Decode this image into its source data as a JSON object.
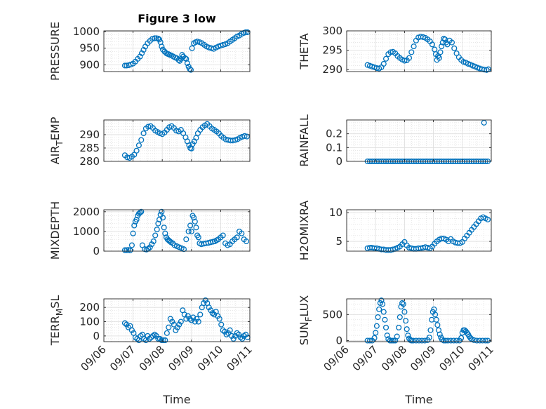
{
  "figure": {
    "title": "Figure 3 low",
    "marker_color": "#0072BD",
    "x_tick_labels": [
      "09/06",
      "09/07",
      "09/08",
      "09/09",
      "09/10",
      "09/11"
    ],
    "x_label": "Time"
  },
  "chart_data": [
    {
      "type": "scatter",
      "ylabel": "PRESSURE",
      "title": "Figure 3 low",
      "xlim": [
        0,
        5
      ],
      "ylim": [
        880,
        1002
      ],
      "yticks": [
        900,
        950,
        1000
      ],
      "ytick_labels": [
        "900",
        "950",
        "1000"
      ],
      "grid": true,
      "x": [
        0.72,
        0.78,
        0.85,
        0.92,
        1.0,
        1.08,
        1.16,
        1.24,
        1.3,
        1.36,
        1.42,
        1.5,
        1.58,
        1.66,
        1.74,
        1.8,
        1.86,
        1.9,
        1.94,
        1.98,
        2.02,
        2.08,
        2.14,
        2.18,
        2.22,
        2.26,
        2.32,
        2.38,
        2.44,
        2.5,
        2.56,
        2.6,
        2.64,
        2.68,
        2.72,
        2.78,
        2.82,
        2.86,
        2.9,
        2.94,
        2.98,
        3.02,
        3.08,
        3.14,
        3.2,
        3.28,
        3.36,
        3.44,
        3.52,
        3.6,
        3.68,
        3.76,
        3.84,
        3.92,
        4.0,
        4.08,
        4.16,
        4.24,
        4.32,
        4.4,
        4.48,
        4.56,
        4.64,
        4.72,
        4.8,
        4.86,
        4.92
      ],
      "y": [
        898,
        898,
        899,
        901,
        904,
        910,
        918,
        925,
        935,
        945,
        955,
        965,
        972,
        978,
        980,
        980,
        979,
        976,
        968,
        955,
        946,
        940,
        935,
        933,
        932,
        930,
        928,
        925,
        922,
        920,
        915,
        912,
        918,
        930,
        925,
        920,
        918,
        905,
        895,
        888,
        885,
        950,
        965,
        968,
        970,
        968,
        965,
        960,
        955,
        952,
        950,
        948,
        952,
        955,
        958,
        960,
        962,
        965,
        970,
        975,
        980,
        985,
        988,
        993,
        996,
        998,
        998
      ]
    },
    {
      "type": "scatter",
      "ylabel": "THETA",
      "xlim": [
        0,
        5
      ],
      "ylim": [
        289.5,
        300
      ],
      "yticks": [
        290,
        295,
        300
      ],
      "ytick_labels": [
        "290",
        "295",
        "300"
      ],
      "grid": true,
      "x": [
        0.72,
        0.8,
        0.88,
        0.96,
        1.04,
        1.12,
        1.2,
        1.28,
        1.36,
        1.44,
        1.52,
        1.6,
        1.68,
        1.76,
        1.84,
        1.92,
        2.0,
        2.08,
        2.16,
        2.24,
        2.32,
        2.4,
        2.48,
        2.56,
        2.64,
        2.72,
        2.8,
        2.88,
        2.96,
        3.04,
        3.08,
        3.12,
        3.16,
        3.2,
        3.24,
        3.28,
        3.32,
        3.36,
        3.4,
        3.44,
        3.48,
        3.56,
        3.64,
        3.72,
        3.8,
        3.88,
        3.96,
        4.04,
        4.12,
        4.2,
        4.28,
        4.36,
        4.44,
        4.52,
        4.6,
        4.68,
        4.76,
        4.84,
        4.9
      ],
      "y": [
        291.2,
        291,
        290.8,
        290.6,
        290.4,
        290.3,
        290.6,
        291.5,
        292.8,
        294,
        294.5,
        294.6,
        294.2,
        293.5,
        293,
        292.6,
        292.3,
        292.4,
        293,
        294.5,
        296,
        297.5,
        298.3,
        298.5,
        298.4,
        298.2,
        297.8,
        297.3,
        296.5,
        295.2,
        294,
        292.5,
        293.5,
        293,
        294.5,
        296,
        297,
        298,
        297.8,
        297,
        296.5,
        297.5,
        297,
        295.5,
        294.2,
        293.2,
        292.5,
        292,
        291.8,
        291.5,
        291.3,
        291,
        290.8,
        290.5,
        290.3,
        290.1,
        290,
        289.9,
        290.1
      ]
    },
    {
      "type": "scatter",
      "ylabel": "AIR_TEMP",
      "xlim": [
        0,
        5
      ],
      "ylim": [
        280,
        295.5
      ],
      "yticks": [
        280,
        285,
        290
      ],
      "ytick_labels": [
        "280",
        "285",
        "290"
      ],
      "grid": true,
      "x": [
        0.72,
        0.8,
        0.88,
        0.96,
        1.04,
        1.12,
        1.2,
        1.28,
        1.36,
        1.44,
        1.52,
        1.6,
        1.68,
        1.76,
        1.84,
        1.92,
        2.0,
        2.08,
        2.16,
        2.24,
        2.32,
        2.4,
        2.48,
        2.56,
        2.64,
        2.72,
        2.8,
        2.86,
        2.92,
        2.96,
        3.0,
        3.04,
        3.1,
        3.16,
        3.22,
        3.3,
        3.38,
        3.46,
        3.54,
        3.62,
        3.7,
        3.78,
        3.86,
        3.94,
        4.02,
        4.1,
        4.18,
        4.26,
        4.34,
        4.42,
        4.5,
        4.58,
        4.66,
        4.74,
        4.82,
        4.9
      ],
      "y": [
        282.3,
        281.5,
        281.3,
        281.8,
        282.5,
        284,
        286,
        288,
        290.5,
        292.3,
        293,
        293.2,
        292.5,
        291.5,
        291,
        290.5,
        290.2,
        290.8,
        291.8,
        292.8,
        293.2,
        292.5,
        291.5,
        291.2,
        291.8,
        290.5,
        289,
        287.5,
        286,
        285,
        284.8,
        286.5,
        287.5,
        288.8,
        290.5,
        291.8,
        292.8,
        293.5,
        294,
        293.2,
        292.3,
        291.8,
        291.2,
        290.5,
        289.5,
        288.8,
        288.2,
        288,
        287.8,
        287.8,
        288,
        288.3,
        288.8,
        289.2,
        289.5,
        289.3
      ]
    },
    {
      "type": "scatter",
      "ylabel": "RAINFALL",
      "xlim": [
        0,
        5
      ],
      "ylim": [
        0,
        0.3
      ],
      "yticks": [
        0,
        0.1,
        0.2
      ],
      "ytick_labels": [
        "0",
        "0.1",
        "0.2"
      ],
      "grid": true,
      "x": [
        0.72,
        0.8,
        0.88,
        0.96,
        1.04,
        1.12,
        1.2,
        1.28,
        1.36,
        1.44,
        1.52,
        1.6,
        1.68,
        1.76,
        1.84,
        1.92,
        2.0,
        2.08,
        2.16,
        2.24,
        2.32,
        2.4,
        2.48,
        2.56,
        2.64,
        2.72,
        2.8,
        2.88,
        2.96,
        3.04,
        3.12,
        3.2,
        3.28,
        3.36,
        3.44,
        3.52,
        3.6,
        3.68,
        3.76,
        3.84,
        3.92,
        4.0,
        4.08,
        4.16,
        4.24,
        4.32,
        4.4,
        4.48,
        4.56,
        4.64,
        4.72,
        4.8,
        4.88,
        4.75
      ],
      "y": [
        0,
        0,
        0,
        0,
        0,
        0,
        0,
        0,
        0,
        0,
        0,
        0,
        0,
        0,
        0,
        0,
        0,
        0,
        0,
        0,
        0,
        0,
        0,
        0,
        0,
        0,
        0,
        0,
        0,
        0,
        0,
        0,
        0,
        0,
        0,
        0,
        0,
        0,
        0,
        0,
        0,
        0,
        0,
        0,
        0,
        0,
        0,
        0,
        0,
        0,
        0,
        0,
        0,
        0.28
      ]
    },
    {
      "type": "scatter",
      "ylabel": "MIXDEPTH",
      "xlim": [
        0,
        5
      ],
      "ylim": [
        0,
        2100
      ],
      "yticks": [
        0,
        1000,
        2000
      ],
      "ytick_labels": [
        "0",
        "1000",
        "2000"
      ],
      "grid": true,
      "x": [
        0.72,
        0.78,
        0.84,
        0.9,
        0.96,
        1.0,
        1.04,
        1.08,
        1.12,
        1.16,
        1.2,
        1.24,
        1.28,
        1.32,
        1.4,
        1.46,
        1.52,
        1.58,
        1.64,
        1.7,
        1.76,
        1.82,
        1.86,
        1.9,
        1.94,
        1.98,
        2.02,
        2.06,
        2.1,
        2.14,
        2.18,
        2.22,
        2.26,
        2.3,
        2.36,
        2.42,
        2.5,
        2.58,
        2.66,
        2.74,
        2.82,
        2.9,
        2.96,
        3.0,
        3.04,
        3.08,
        3.12,
        3.16,
        3.2,
        3.24,
        3.28,
        3.34,
        3.42,
        3.5,
        3.58,
        3.66,
        3.74,
        3.8,
        3.86,
        3.92,
        4.0,
        4.08,
        4.16,
        4.24,
        4.32,
        4.4,
        4.48,
        4.56,
        4.64,
        4.72,
        4.8,
        4.88
      ],
      "y": [
        50,
        50,
        60,
        40,
        300,
        900,
        1300,
        1500,
        1600,
        1800,
        1900,
        1950,
        2000,
        300,
        100,
        80,
        120,
        200,
        350,
        500,
        800,
        1100,
        1400,
        1600,
        1850,
        2000,
        1700,
        1200,
        900,
        700,
        600,
        550,
        500,
        450,
        400,
        300,
        250,
        200,
        150,
        100,
        600,
        1000,
        1300,
        1000,
        1800,
        1700,
        1500,
        1200,
        800,
        700,
        400,
        350,
        380,
        400,
        420,
        450,
        480,
        500,
        550,
        600,
        700,
        800,
        400,
        300,
        350,
        500,
        600,
        700,
        1000,
        900,
        600,
        500
      ]
    },
    {
      "type": "scatter",
      "ylabel": "H2OMIXRA",
      "xlim": [
        0,
        5
      ],
      "ylim": [
        3.3,
        10.5
      ],
      "yticks": [
        5,
        10
      ],
      "ytick_labels": [
        "5",
        "10"
      ],
      "grid": true,
      "x": [
        0.72,
        0.8,
        0.88,
        0.96,
        1.04,
        1.12,
        1.2,
        1.28,
        1.36,
        1.44,
        1.52,
        1.6,
        1.68,
        1.76,
        1.84,
        1.92,
        2.0,
        2.08,
        2.16,
        2.24,
        2.32,
        2.4,
        2.48,
        2.56,
        2.64,
        2.72,
        2.8,
        2.88,
        2.96,
        3.04,
        3.12,
        3.2,
        3.28,
        3.36,
        3.44,
        3.52,
        3.6,
        3.68,
        3.76,
        3.84,
        3.92,
        4.0,
        4.08,
        4.16,
        4.24,
        4.32,
        4.4,
        4.48,
        4.56,
        4.64,
        4.72,
        4.8,
        4.88
      ],
      "y": [
        3.8,
        3.9,
        3.9,
        3.8,
        3.8,
        3.7,
        3.6,
        3.6,
        3.5,
        3.5,
        3.5,
        3.6,
        3.7,
        3.9,
        4.1,
        4.5,
        4.9,
        4.3,
        3.9,
        3.8,
        3.7,
        3.7,
        3.8,
        3.8,
        3.9,
        4.0,
        3.9,
        3.8,
        4.1,
        4.6,
        5.0,
        5.3,
        5.5,
        5.5,
        5.3,
        5.0,
        5.4,
        5.0,
        4.8,
        4.7,
        4.7,
        4.9,
        5.5,
        6.0,
        6.5,
        7.0,
        7.5,
        8.0,
        8.5,
        9.0,
        9.2,
        9.0,
        8.8
      ]
    },
    {
      "type": "scatter",
      "ylabel": "TERR_MSL",
      "xlim": [
        0,
        5
      ],
      "ylim": [
        -40,
        260
      ],
      "yticks": [
        0,
        100,
        200
      ],
      "ytick_labels": [
        "0",
        "100",
        "200"
      ],
      "grid": true,
      "x": [
        0.72,
        0.78,
        0.84,
        0.9,
        0.96,
        1.02,
        1.08,
        1.14,
        1.2,
        1.26,
        1.32,
        1.38,
        1.44,
        1.5,
        1.56,
        1.62,
        1.68,
        1.74,
        1.8,
        1.86,
        1.92,
        1.98,
        2.04,
        2.1,
        2.16,
        2.22,
        2.28,
        2.34,
        2.4,
        2.46,
        2.52,
        2.58,
        2.64,
        2.7,
        2.76,
        2.82,
        2.88,
        2.94,
        3.0,
        3.06,
        3.12,
        3.18,
        3.24,
        3.3,
        3.36,
        3.42,
        3.48,
        3.54,
        3.6,
        3.66,
        3.72,
        3.78,
        3.84,
        3.9,
        3.96,
        4.02,
        4.08,
        4.14,
        4.2,
        4.26,
        4.32,
        4.38,
        4.44,
        4.5,
        4.56,
        4.62,
        4.68,
        4.74,
        4.8,
        4.86,
        4.92
      ],
      "y": [
        90,
        80,
        60,
        70,
        40,
        20,
        -10,
        -20,
        -30,
        0,
        10,
        -20,
        -30,
        0,
        -20,
        -10,
        0,
        10,
        0,
        -20,
        -20,
        -30,
        -30,
        -30,
        20,
        60,
        120,
        100,
        80,
        40,
        60,
        80,
        100,
        180,
        150,
        120,
        140,
        120,
        110,
        130,
        100,
        120,
        100,
        150,
        200,
        230,
        250,
        230,
        200,
        180,
        160,
        150,
        170,
        140,
        120,
        80,
        40,
        30,
        10,
        20,
        40,
        0,
        -20,
        0,
        20,
        10,
        -10,
        -20,
        0,
        10,
        -10
      ]
    },
    {
      "type": "scatter",
      "ylabel": "SUN_FLUX",
      "xlim": [
        0,
        5
      ],
      "ylim": [
        -20,
        800
      ],
      "yticks": [
        0,
        500
      ],
      "ytick_labels": [
        "0",
        "500"
      ],
      "grid": true,
      "x": [
        0.72,
        0.8,
        0.88,
        0.96,
        1.0,
        1.04,
        1.08,
        1.12,
        1.16,
        1.2,
        1.24,
        1.28,
        1.32,
        1.36,
        1.4,
        1.44,
        1.5,
        1.56,
        1.62,
        1.68,
        1.74,
        1.8,
        1.84,
        1.88,
        1.92,
        1.96,
        2.0,
        2.04,
        2.08,
        2.12,
        2.16,
        2.2,
        2.24,
        2.3,
        2.4,
        2.5,
        2.6,
        2.7,
        2.8,
        2.86,
        2.9,
        2.94,
        2.98,
        3.02,
        3.06,
        3.1,
        3.14,
        3.18,
        3.22,
        3.26,
        3.3,
        3.36,
        3.42,
        3.5,
        3.6,
        3.7,
        3.8,
        3.9,
        3.96,
        4.0,
        4.04,
        4.08,
        4.12,
        4.16,
        4.2,
        4.24,
        4.28,
        4.32,
        4.4,
        4.5,
        4.6,
        4.7,
        4.8,
        4.88
      ],
      "y": [
        0,
        0,
        0,
        50,
        150,
        280,
        450,
        600,
        720,
        770,
        700,
        550,
        400,
        250,
        100,
        30,
        0,
        0,
        0,
        0,
        80,
        250,
        450,
        650,
        720,
        700,
        550,
        380,
        220,
        100,
        40,
        10,
        0,
        0,
        0,
        0,
        0,
        0,
        10,
        60,
        200,
        400,
        550,
        600,
        500,
        400,
        300,
        200,
        120,
        60,
        20,
        0,
        0,
        0,
        0,
        0,
        0,
        0,
        50,
        150,
        200,
        200,
        180,
        150,
        120,
        80,
        50,
        30,
        10,
        0,
        0,
        0,
        0,
        0
      ]
    }
  ]
}
